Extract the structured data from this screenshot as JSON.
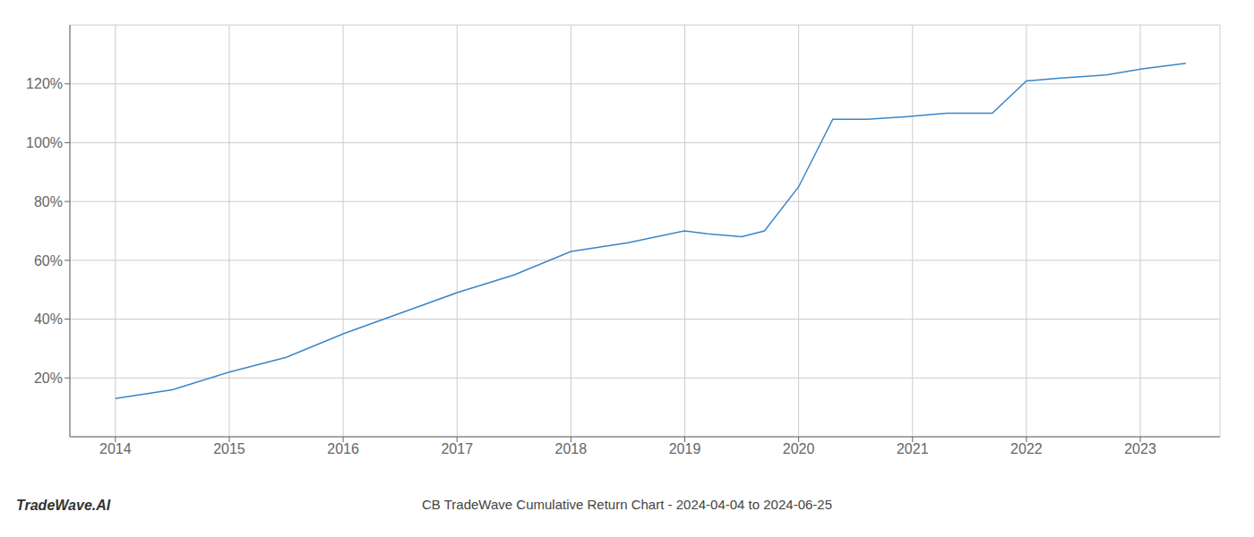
{
  "chart_data": {
    "type": "line",
    "title": "CB TradeWave Cumulative Return Chart - 2024-04-04 to 2024-06-25",
    "annotations": [
      "TradeWave.AI"
    ],
    "x": [
      2014.0,
      2014.5,
      2015.0,
      2015.5,
      2016.0,
      2016.5,
      2017.0,
      2017.5,
      2018.0,
      2018.5,
      2019.0,
      2019.2,
      2019.5,
      2019.7,
      2020.0,
      2020.3,
      2020.6,
      2021.0,
      2021.3,
      2021.7,
      2022.0,
      2022.3,
      2022.7,
      2023.0,
      2023.4
    ],
    "values": [
      13,
      16,
      22,
      27,
      35,
      42,
      49,
      55,
      63,
      66,
      70,
      69,
      68,
      70,
      85,
      108,
      108,
      109,
      110,
      110,
      121,
      122,
      123,
      125,
      127
    ],
    "color": "#3a86c8",
    "xlim": [
      2013.6,
      2023.7
    ],
    "xticks": [
      2014,
      2015,
      2016,
      2017,
      2018,
      2019,
      2020,
      2021,
      2022,
      2023
    ],
    "ylim": [
      0,
      140
    ],
    "yticks": [
      {
        "value": 20,
        "label": "20%"
      },
      {
        "value": 40,
        "label": "40%"
      },
      {
        "value": 60,
        "label": "60%"
      },
      {
        "value": 80,
        "label": "80%"
      },
      {
        "value": 100,
        "label": "100%"
      },
      {
        "value": 120,
        "label": "120%"
      }
    ],
    "grid": true
  }
}
